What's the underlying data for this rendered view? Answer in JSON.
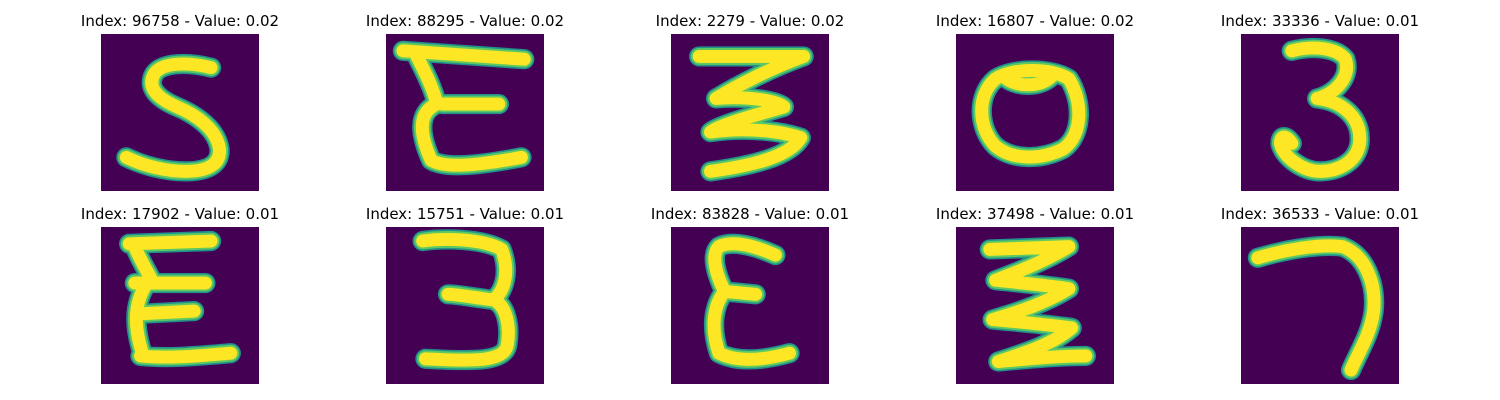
{
  "palette": {
    "background": "#440154",
    "stroke_edge": "#21918c",
    "stroke_mid": "#5ec962",
    "stroke_core": "#fde725"
  },
  "panels": [
    {
      "title": "Index: 96758 - Value: 0.02",
      "glyph": "5"
    },
    {
      "title": "Index: 88295 - Value: 0.02",
      "glyph": "ε"
    },
    {
      "title": "Index: 2279 - Value: 0.02",
      "glyph": "3"
    },
    {
      "title": "Index: 16807 - Value: 0.02",
      "glyph": "0"
    },
    {
      "title": "Index: 33336 - Value: 0.01",
      "glyph": "3"
    },
    {
      "title": "Index: 17902 - Value: 0.01",
      "glyph": "ε"
    },
    {
      "title": "Index: 15751 - Value: 0.01",
      "glyph": "3"
    },
    {
      "title": "Index: 83828 - Value: 0.01",
      "glyph": "ε"
    },
    {
      "title": "Index: 37498 - Value: 0.01",
      "glyph": "3"
    },
    {
      "title": "Index: 36533 - Value: 0.01",
      "glyph": "7"
    }
  ]
}
